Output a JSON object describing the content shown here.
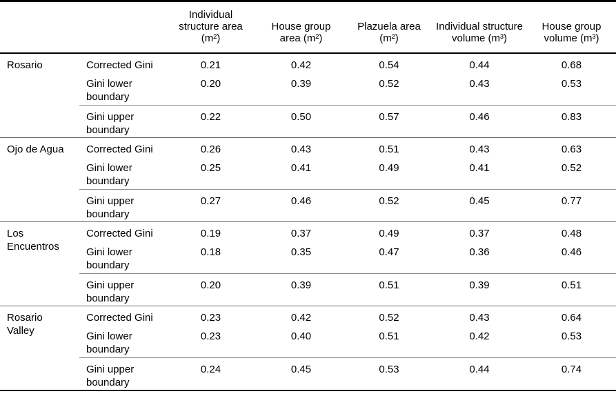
{
  "table": {
    "columns": [
      {
        "label": ""
      },
      {
        "label": ""
      },
      {
        "label": "Individual structure area (m²)"
      },
      {
        "label": "House group area (m²)"
      },
      {
        "label": "Plazuela area (m²)"
      },
      {
        "label": "Individual structure volume (m³)"
      },
      {
        "label": "House group volume (m³)"
      }
    ],
    "sections": [
      {
        "site": "Rosario",
        "rows": [
          {
            "label": "Corrected Gini",
            "values": [
              "0.21",
              "0.42",
              "0.54",
              "0.44",
              "0.68"
            ]
          },
          {
            "label": "Gini lower boundary",
            "values": [
              "0.20",
              "0.39",
              "0.52",
              "0.43",
              "0.53"
            ]
          },
          {
            "label": "Gini upper boundary",
            "values": [
              "0.22",
              "0.50",
              "0.57",
              "0.46",
              "0.83"
            ]
          }
        ]
      },
      {
        "site": "Ojo de Agua",
        "rows": [
          {
            "label": "Corrected Gini",
            "values": [
              "0.26",
              "0.43",
              "0.51",
              "0.43",
              "0.63"
            ]
          },
          {
            "label": "Gini lower boundary",
            "values": [
              "0.25",
              "0.41",
              "0.49",
              "0.41",
              "0.52"
            ]
          },
          {
            "label": "Gini upper boundary",
            "values": [
              "0.27",
              "0.46",
              "0.52",
              "0.45",
              "0.77"
            ]
          }
        ]
      },
      {
        "site": "Los\nEncuentros",
        "rows": [
          {
            "label": "Corrected Gini",
            "values": [
              "0.19",
              "0.37",
              "0.49",
              "0.37",
              "0.48"
            ]
          },
          {
            "label": "Gini lower boundary",
            "values": [
              "0.18",
              "0.35",
              "0.47",
              "0.36",
              "0.46"
            ]
          },
          {
            "label": "Gini upper boundary",
            "values": [
              "0.20",
              "0.39",
              "0.51",
              "0.39",
              "0.51"
            ]
          }
        ]
      },
      {
        "site": "Rosario\nValley",
        "rows": [
          {
            "label": "Corrected Gini",
            "values": [
              "0.23",
              "0.42",
              "0.52",
              "0.43",
              "0.64"
            ]
          },
          {
            "label": "Gini lower boundary",
            "values": [
              "0.23",
              "0.40",
              "0.51",
              "0.42",
              "0.53"
            ]
          },
          {
            "label": "Gini upper boundary",
            "values": [
              "0.24",
              "0.45",
              "0.53",
              "0.44",
              "0.74"
            ]
          }
        ]
      }
    ]
  }
}
